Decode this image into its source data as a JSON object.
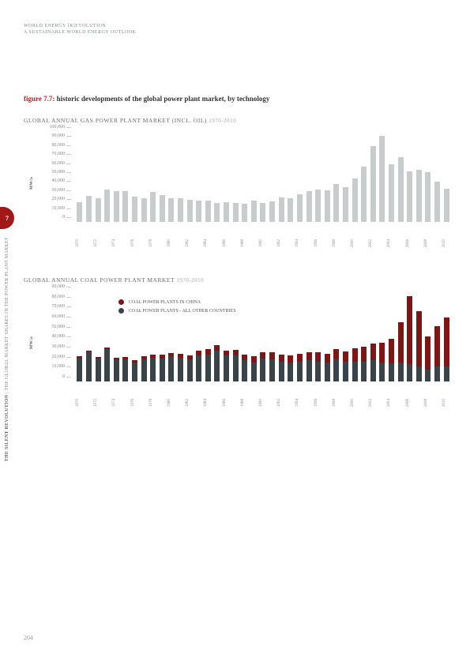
{
  "header": {
    "line1": "WORLD ENERGY [R]EVOLUTION",
    "line2": "A SUSTAINABLE WORLD ENERGY OUTLOOK"
  },
  "figure": {
    "number": "figure 7.7:",
    "title": "historic developments of the global power plant market, by technology"
  },
  "sidebar": {
    "tab": "7",
    "text1": "the silent revolution",
    "text2": "THE GLOBAL MARKET SHARES IN THE POWER PLANT MARKET"
  },
  "page_number": "204",
  "chart1": {
    "type": "bar",
    "title": "GLOBAL ANNUAL GAS POWER PLANT MARKET (INCL. OIL)",
    "range": "1970-2010",
    "ylabel": "MW/a",
    "ymax": 100000,
    "ytick_step": 10000,
    "yticks": [
      0,
      10000,
      20000,
      30000,
      40000,
      50000,
      60000,
      70000,
      80000,
      90000,
      100000
    ],
    "bar_color": "#c8cccc",
    "background_color": "#ffffff",
    "years": [
      1970,
      1971,
      1972,
      1973,
      1974,
      1975,
      1976,
      1977,
      1978,
      1979,
      1980,
      1981,
      1982,
      1983,
      1984,
      1985,
      1986,
      1987,
      1988,
      1989,
      1990,
      1991,
      1992,
      1993,
      1994,
      1995,
      1996,
      1997,
      1998,
      1999,
      2000,
      2001,
      2002,
      2003,
      2004,
      2005,
      2006,
      2007,
      2008,
      2009,
      2010
    ],
    "values": [
      22000,
      29000,
      26000,
      36000,
      34000,
      34000,
      28000,
      26000,
      33000,
      30000,
      26000,
      26000,
      25000,
      24000,
      24000,
      21000,
      22000,
      21000,
      20000,
      24000,
      21000,
      23000,
      27000,
      26000,
      31000,
      34000,
      36000,
      35000,
      42000,
      39000,
      48000,
      61000,
      84000,
      96000,
      64000,
      72000,
      56000,
      58000,
      55000,
      45000,
      37000
    ],
    "xlabel_step": 2
  },
  "chart2": {
    "type": "stacked-bar",
    "title": "GLOBAL ANNUAL COAL POWER PLANT MARKET",
    "range": "1970-2010",
    "ylabel": "MW/a",
    "ymax": 90000,
    "ytick_step": 10000,
    "yticks": [
      0,
      10000,
      20000,
      30000,
      40000,
      50000,
      60000,
      70000,
      80000,
      90000
    ],
    "background_color": "#ffffff",
    "legend": [
      {
        "label": "COAL POWER PLANTS IN CHINA",
        "color": "#7a1818"
      },
      {
        "label": "COAL POWER PLANTS - ALL OTHER COUNTRIES",
        "color": "#3a4448"
      }
    ],
    "years": [
      1970,
      1971,
      1972,
      1973,
      1974,
      1975,
      1976,
      1977,
      1978,
      1979,
      1980,
      1981,
      1982,
      1983,
      1984,
      1985,
      1986,
      1987,
      1988,
      1989,
      1990,
      1991,
      1992,
      1993,
      1994,
      1995,
      1996,
      1997,
      1998,
      1999,
      2000,
      2001,
      2002,
      2003,
      2004,
      2005,
      2006,
      2007,
      2008,
      2009,
      2010
    ],
    "series": {
      "other": {
        "color": "#3a4448",
        "values": [
          24000,
          30000,
          23000,
          32000,
          22000,
          22000,
          19000,
          22000,
          24000,
          23000,
          25000,
          24000,
          22000,
          26000,
          27000,
          31000,
          26000,
          26000,
          21000,
          19000,
          23000,
          22000,
          20000,
          19000,
          20000,
          21000,
          20000,
          19000,
          22000,
          20000,
          20000,
          20000,
          21000,
          19000,
          18000,
          19000,
          17000,
          15000,
          12000,
          15000,
          15000
        ]
      },
      "china": {
        "color": "#7a1818",
        "values": [
          1000,
          1000,
          1500,
          2000,
          2000,
          2500,
          2500,
          3000,
          3000,
          3500,
          3500,
          4000,
          4000,
          4500,
          5000,
          5000,
          5000,
          5500,
          6000,
          6000,
          6000,
          7000,
          7000,
          7000,
          8000,
          8000,
          9000,
          9000,
          10000,
          10000,
          13000,
          15000,
          17000,
          20000,
          25000,
          40000,
          68000,
          55000,
          33000,
          40000,
          49000
        ]
      }
    },
    "xlabel_step": 2
  }
}
